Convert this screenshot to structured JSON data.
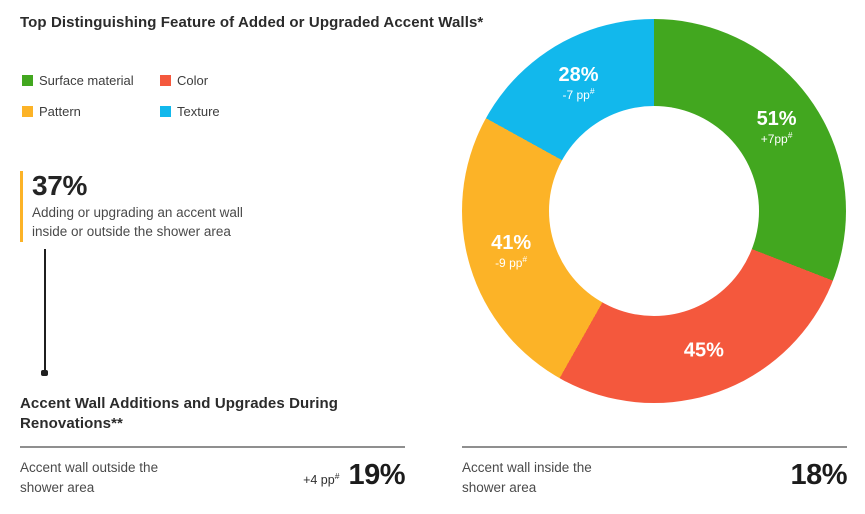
{
  "title": "Top Distinguishing Feature of Added or Upgraded Accent Walls*",
  "highlight_stat": {
    "value": "37%",
    "description": "Adding or upgrading an accent wall inside or outside the shower area"
  },
  "section": {
    "heading": "Accent Wall Additions and Upgrades During Renovations**",
    "rows": [
      {
        "label": "Accent wall outside the shower area",
        "delta": "+4 pp",
        "delta_sup": "#",
        "value": "19%"
      },
      {
        "label": "Accent wall inside the shower area",
        "delta": "",
        "delta_sup": "",
        "value": "18%"
      }
    ]
  },
  "chart_data": {
    "type": "pie",
    "subtype": "donut",
    "title": "Top Distinguishing Feature of Added or Upgraded Accent Walls*",
    "start_angle_deg": 0,
    "direction": "clockwise",
    "hole_ratio": 0.547,
    "legend_position": "top-left",
    "segments": [
      {
        "label": "Surface material",
        "value": 51,
        "pct_label": "51%",
        "delta": "+7pp",
        "delta_sup": "#",
        "color": "#42A71F"
      },
      {
        "label": "Color",
        "value": 45,
        "pct_label": "45%",
        "delta": "",
        "delta_sup": "",
        "color": "#F4583D"
      },
      {
        "label": "Pattern",
        "value": 41,
        "pct_label": "41%",
        "delta": "-9 pp",
        "delta_sup": "#",
        "color": "#FCB327"
      },
      {
        "label": "Texture",
        "value": 28,
        "pct_label": "28%",
        "delta": "-7 pp",
        "delta_sup": "#",
        "color": "#12B8EC"
      }
    ]
  }
}
